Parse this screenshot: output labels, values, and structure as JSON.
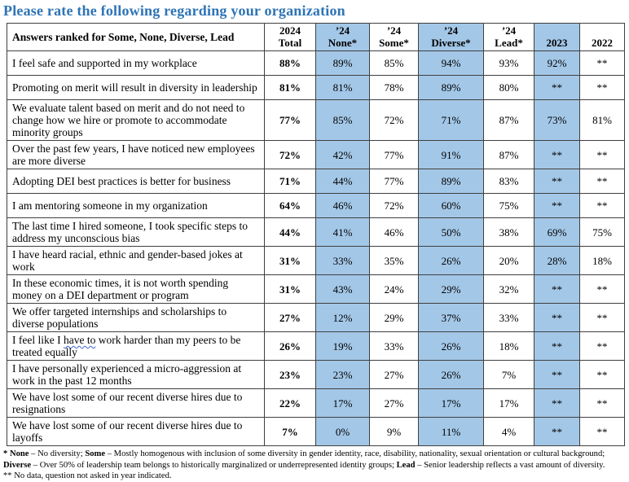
{
  "title": "Please rate the following regarding your organization",
  "colors": {
    "title_blue": "#2E74B5",
    "cell_blue": "#A3C7E7",
    "border": "#3f3f3f"
  },
  "table": {
    "answers_header": "Answers ranked for Some, None, Diverse, Lead",
    "year_columns": [
      {
        "line1": "2024",
        "line2": "Total",
        "blue": false
      },
      {
        "line1": "’24",
        "line2": "None*",
        "blue": true
      },
      {
        "line1": "’24",
        "line2": "Some*",
        "blue": false
      },
      {
        "line1": "’24",
        "line2": "Diverse*",
        "blue": true
      },
      {
        "line1": "’24",
        "line2": "Lead*",
        "blue": false
      },
      {
        "line1": "",
        "line2": "2023",
        "blue": true
      },
      {
        "line1": "",
        "line2": "2022",
        "blue": false
      }
    ],
    "rows": [
      {
        "answer": "I feel safe and supported in my workplace",
        "values": [
          "88%",
          "89%",
          "85%",
          "94%",
          "93%",
          "92%",
          "**"
        ]
      },
      {
        "answer": "Promoting on merit will result in diversity in leadership",
        "values": [
          "81%",
          "81%",
          "78%",
          "89%",
          "80%",
          "**",
          "**"
        ]
      },
      {
        "answer": "We evaluate talent based on merit and do not need to change how we hire or promote to accommodate minority groups",
        "values": [
          "77%",
          "85%",
          "72%",
          "71%",
          "87%",
          "73%",
          "81%"
        ]
      },
      {
        "answer": "Over the past few years, I have noticed new employees are more diverse",
        "values": [
          "72%",
          "42%",
          "77%",
          "91%",
          "87%",
          "**",
          "**"
        ]
      },
      {
        "answer": "Adopting DEI best practices is better for business",
        "values": [
          "71%",
          "44%",
          "77%",
          "89%",
          "83%",
          "**",
          "**"
        ]
      },
      {
        "answer": "I am mentoring someone in my organization",
        "values": [
          "64%",
          "46%",
          "72%",
          "60%",
          "75%",
          "**",
          "**"
        ]
      },
      {
        "answer": "The last time I hired someone, I took specific steps to address my unconscious bias",
        "values": [
          "44%",
          "41%",
          "46%",
          "50%",
          "38%",
          "69%",
          "75%"
        ]
      },
      {
        "answer": "I have heard racial, ethnic and gender-based jokes at work",
        "values": [
          "31%",
          "33%",
          "35%",
          "26%",
          "20%",
          "28%",
          "18%"
        ]
      },
      {
        "answer": "In these economic times, it is not worth spending money on a DEI department or program",
        "values": [
          "31%",
          "43%",
          "24%",
          "29%",
          "32%",
          "**",
          "**"
        ]
      },
      {
        "answer": "We offer targeted internships and scholarships to diverse populations",
        "values": [
          "27%",
          "12%",
          "29%",
          "37%",
          "33%",
          "**",
          "**"
        ]
      },
      {
        "answer": "I feel like I have to work harder than my peers to be treated equally",
        "underline_phrase": "have to",
        "values": [
          "26%",
          "19%",
          "33%",
          "26%",
          "18%",
          "**",
          "**"
        ]
      },
      {
        "answer": "I have personally experienced a micro-aggression at work in the past 12 months",
        "values": [
          "23%",
          "23%",
          "27%",
          "26%",
          "7%",
          "**",
          "**"
        ]
      },
      {
        "answer": "We have lost some of our recent diverse hires due to resignations",
        "values": [
          "22%",
          "17%",
          "27%",
          "17%",
          "17%",
          "**",
          "**"
        ]
      },
      {
        "answer": "We have lost some of our recent diverse hires due to layoffs",
        "values": [
          "7%",
          "0%",
          "9%",
          "11%",
          "4%",
          "**",
          "**"
        ]
      }
    ]
  },
  "footnotes": {
    "line1_segments": [
      {
        "text": "* None",
        "bold": true
      },
      {
        "text": " – No diversity; ",
        "bold": false
      },
      {
        "text": "Some",
        "bold": true
      },
      {
        "text": " – Mostly homogenous with inclusion of some diversity in gender identity, race, disability, nationality, sexual orientation or cultural background; ",
        "bold": false
      },
      {
        "text": "Diverse",
        "bold": true
      },
      {
        "text": " – Over 50% of leadership team belongs to historically marginalized or underrepresented identity groups; ",
        "bold": false
      },
      {
        "text": "Lead",
        "bold": true
      },
      {
        "text": " – Senior leadership reflects a vast amount of diversity.",
        "bold": false
      }
    ],
    "line2": "** No data, question not asked in year indicated."
  }
}
